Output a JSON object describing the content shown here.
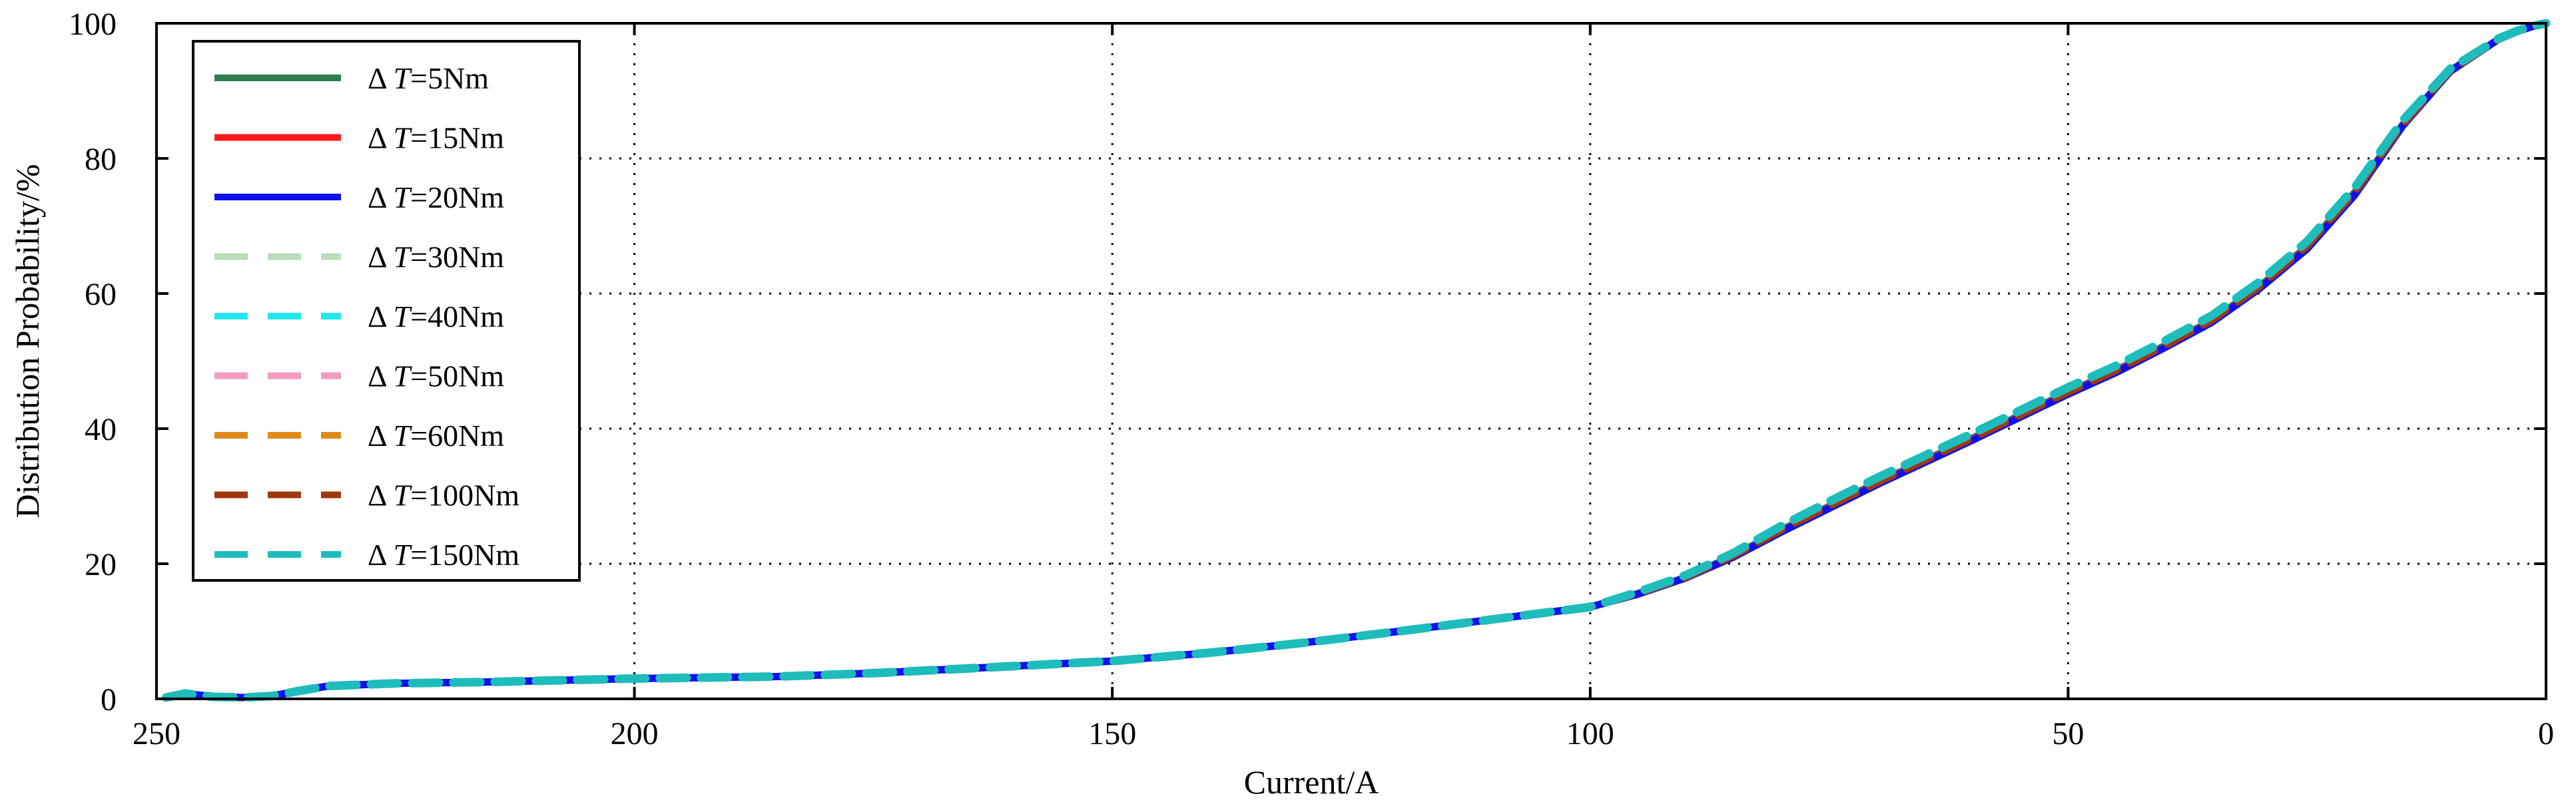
{
  "chart_data": {
    "type": "line",
    "xlabel": "Current/A",
    "ylabel": "Distribution Probability/%",
    "xlim": [
      250,
      0
    ],
    "ylim": [
      0,
      100
    ],
    "x_ticks": [
      250,
      200,
      150,
      100,
      50,
      0
    ],
    "y_ticks": [
      0,
      20,
      40,
      60,
      80,
      100
    ],
    "x_tick_labels": [
      "250",
      "200",
      "150",
      "100",
      "50",
      "0"
    ],
    "y_tick_labels": [
      "0",
      "20",
      "40",
      "60",
      "80",
      "100"
    ],
    "grid": "dotted",
    "legend_position": "top-left",
    "x": [
      249,
      247,
      244,
      241,
      238,
      235,
      232,
      225,
      215,
      200,
      185,
      175,
      165,
      150,
      140,
      130,
      120,
      110,
      100,
      95,
      90,
      85,
      80,
      75,
      70,
      65,
      60,
      55,
      50,
      45,
      40,
      35,
      30,
      25,
      20,
      15,
      10,
      5,
      3,
      1,
      0
    ],
    "series": [
      {
        "name": "Δ T=5Nm",
        "delta_symbol": "Δ",
        "label_prefix": "T",
        "label_suffix": "=5Nm",
        "color": "#2e7d4f",
        "dash": "solid",
        "values": [
          0.2,
          0.8,
          0.3,
          0.2,
          0.4,
          1.2,
          1.9,
          2.3,
          2.5,
          3.0,
          3.3,
          3.8,
          4.5,
          5.6,
          6.8,
          8.3,
          10.0,
          11.8,
          13.6,
          15.6,
          18.0,
          21.2,
          25.0,
          28.5,
          32.0,
          35.3,
          38.6,
          42.0,
          45.4,
          48.6,
          52.2,
          56.0,
          61.0,
          67.0,
          75.0,
          85.0,
          93.0,
          97.6,
          98.8,
          99.7,
          100
        ]
      },
      {
        "name": "Δ T=15Nm",
        "delta_symbol": "Δ",
        "label_prefix": "T",
        "label_suffix": "=15Nm",
        "color": "#ff1a1a",
        "dash": "solid",
        "values": [
          0.2,
          0.8,
          0.3,
          0.2,
          0.4,
          1.2,
          1.9,
          2.3,
          2.5,
          3.0,
          3.3,
          3.8,
          4.5,
          5.6,
          6.8,
          8.3,
          10.0,
          11.8,
          13.6,
          15.6,
          18.0,
          21.1,
          24.9,
          28.4,
          31.9,
          35.2,
          38.5,
          41.9,
          45.3,
          48.5,
          52.1,
          55.9,
          60.9,
          66.9,
          74.9,
          85.0,
          93.0,
          97.6,
          98.8,
          99.7,
          100
        ]
      },
      {
        "name": "Δ T=20Nm",
        "delta_symbol": "Δ",
        "label_prefix": "T",
        "label_suffix": "=20Nm",
        "color": "#1010ee",
        "dash": "solid",
        "values": [
          0.2,
          0.8,
          0.3,
          0.2,
          0.4,
          1.2,
          1.9,
          2.3,
          2.5,
          3.0,
          3.3,
          3.8,
          4.5,
          5.6,
          6.8,
          8.3,
          10.0,
          11.8,
          13.6,
          15.5,
          17.9,
          21.0,
          24.7,
          28.2,
          31.7,
          35.0,
          38.3,
          41.7,
          45.1,
          48.3,
          51.9,
          55.7,
          60.7,
          66.6,
          74.6,
          84.8,
          92.9,
          97.6,
          98.8,
          99.7,
          100
        ]
      },
      {
        "name": "Δ T=30Nm",
        "delta_symbol": "Δ",
        "label_prefix": "T",
        "label_suffix": "=30Nm",
        "color": "#b8ddb8",
        "dash": "dashed",
        "values": [
          0.2,
          0.8,
          0.3,
          0.2,
          0.4,
          1.2,
          1.9,
          2.3,
          2.5,
          3.0,
          3.3,
          3.8,
          4.5,
          5.6,
          6.8,
          8.3,
          10.0,
          11.8,
          13.6,
          15.7,
          18.2,
          21.5,
          25.4,
          29.0,
          32.5,
          35.8,
          39.1,
          42.5,
          45.9,
          49.1,
          52.7,
          56.5,
          61.5,
          67.5,
          75.5,
          85.4,
          93.2,
          97.7,
          98.9,
          99.7,
          100
        ]
      },
      {
        "name": "Δ T=40Nm",
        "delta_symbol": "Δ",
        "label_prefix": "T",
        "label_suffix": "=40Nm",
        "color": "#22e8ee",
        "dash": "dashed",
        "values": [
          0.2,
          0.8,
          0.3,
          0.2,
          0.4,
          1.2,
          1.9,
          2.3,
          2.5,
          3.0,
          3.3,
          3.8,
          4.5,
          5.6,
          6.8,
          8.3,
          10.0,
          11.8,
          13.6,
          15.7,
          18.2,
          21.5,
          25.4,
          29.0,
          32.5,
          35.8,
          39.1,
          42.5,
          45.9,
          49.1,
          52.7,
          56.5,
          61.5,
          67.5,
          75.5,
          85.4,
          93.2,
          97.7,
          98.9,
          99.7,
          100
        ]
      },
      {
        "name": "Δ T=50Nm",
        "delta_symbol": "Δ",
        "label_prefix": "T",
        "label_suffix": "=50Nm",
        "color": "#f49ac1",
        "dash": "dashed",
        "values": [
          0.2,
          0.8,
          0.3,
          0.2,
          0.4,
          1.2,
          1.9,
          2.3,
          2.5,
          3.0,
          3.3,
          3.8,
          4.5,
          5.6,
          6.8,
          8.3,
          10.0,
          11.8,
          13.6,
          15.7,
          18.2,
          21.5,
          25.4,
          29.0,
          32.5,
          35.8,
          39.1,
          42.5,
          45.9,
          49.1,
          52.7,
          56.5,
          61.5,
          67.5,
          75.5,
          85.4,
          93.2,
          97.7,
          98.9,
          99.7,
          100
        ]
      },
      {
        "name": "Δ T=60Nm",
        "delta_symbol": "Δ",
        "label_prefix": "T",
        "label_suffix": "=60Nm",
        "color": "#e08a1e",
        "dash": "dashed",
        "values": [
          0.2,
          0.8,
          0.3,
          0.2,
          0.4,
          1.2,
          1.9,
          2.3,
          2.5,
          3.0,
          3.3,
          3.8,
          4.5,
          5.6,
          6.8,
          8.3,
          10.0,
          11.8,
          13.6,
          15.7,
          18.1,
          21.3,
          25.1,
          28.7,
          32.2,
          35.5,
          38.8,
          42.2,
          45.6,
          48.8,
          52.4,
          56.2,
          61.2,
          67.2,
          75.2,
          85.2,
          93.1,
          97.6,
          98.8,
          99.7,
          100
        ]
      },
      {
        "name": "Δ T=100Nm",
        "delta_symbol": "Δ",
        "label_prefix": "T",
        "label_suffix": "=100Nm",
        "color": "#a0380e",
        "dash": "dashed",
        "values": [
          0.2,
          0.8,
          0.3,
          0.2,
          0.4,
          1.2,
          1.9,
          2.3,
          2.5,
          3.0,
          3.3,
          3.8,
          4.5,
          5.6,
          6.8,
          8.3,
          10.0,
          11.8,
          13.6,
          15.6,
          18.0,
          21.2,
          25.0,
          28.5,
          32.0,
          35.3,
          38.6,
          42.0,
          45.4,
          48.6,
          52.2,
          56.0,
          61.0,
          67.0,
          75.0,
          85.0,
          93.0,
          97.6,
          98.8,
          99.7,
          100
        ]
      },
      {
        "name": "Δ T=150Nm",
        "delta_symbol": "Δ",
        "label_prefix": "T",
        "label_suffix": "=150Nm",
        "color": "#1fbcbc",
        "dash": "dashed",
        "values": [
          0.2,
          0.8,
          0.3,
          0.2,
          0.4,
          1.2,
          1.9,
          2.3,
          2.5,
          3.0,
          3.3,
          3.8,
          4.5,
          5.6,
          6.8,
          8.3,
          10.0,
          11.8,
          13.6,
          15.8,
          18.3,
          21.6,
          25.6,
          29.2,
          32.7,
          36.0,
          39.3,
          42.7,
          46.1,
          49.3,
          52.9,
          56.7,
          61.7,
          67.7,
          75.7,
          85.6,
          93.3,
          97.7,
          98.9,
          99.7,
          100
        ]
      }
    ]
  }
}
